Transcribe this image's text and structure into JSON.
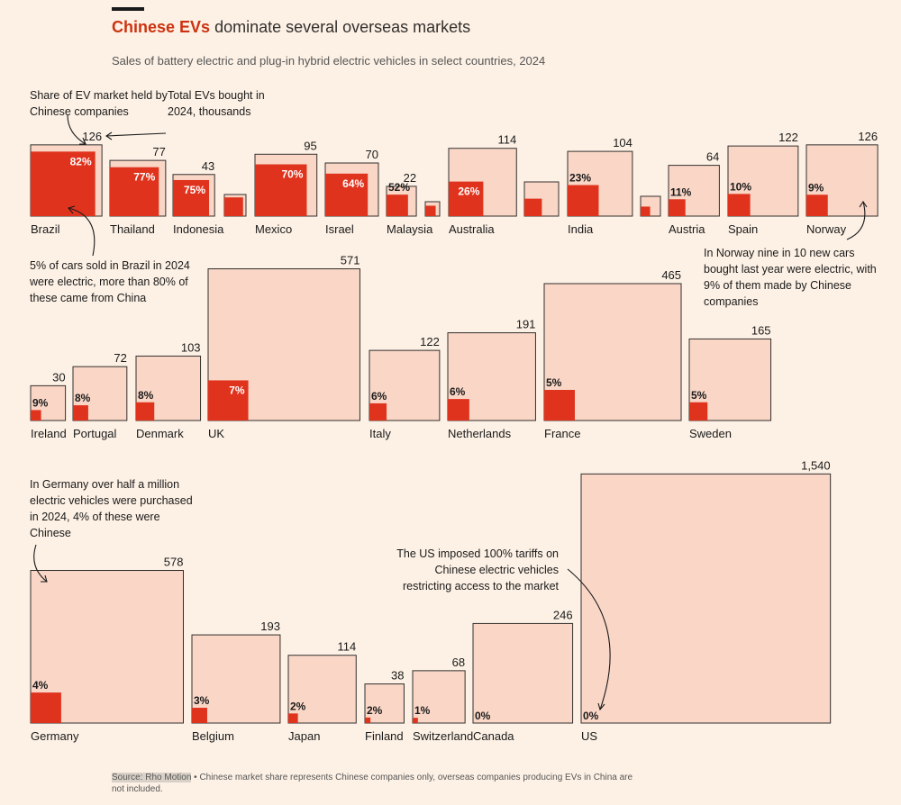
{
  "header": {
    "title_highlight": "Chinese EVs",
    "title_rest": "dominate several overseas markets",
    "subtitle": "Sales of battery electric and plug-in hybrid electric vehicles in select countries, 2024"
  },
  "colors": {
    "background": "#fdf1e5",
    "total_fill": "#f9d6c6",
    "ev_fill": "#e0331d",
    "stroke": "#33302e"
  },
  "annotations": {
    "share_legend": "Share of EV market held by Chinese companies",
    "total_legend": "Total EVs bought in 2024, thousands",
    "brazil_note": "5% of cars sold in Brazil in 2024 were electric, more than 80% of these came from China",
    "norway_note": "In Norway nine in 10 new cars bought last year were electric, with 9% of them made by Chinese companies",
    "germany_note": "In Germany over half a million electric vehicles were purchased in 2024, 4% of these were Chinese",
    "us_note": "The US imposed 100% tariffs on Chinese electric vehicles restricting access to the market"
  },
  "chart_data": {
    "type": "nested-square",
    "title": "Chinese EVs dominate several overseas markets",
    "value_unit": "thousands",
    "countries": [
      {
        "name": "Brazil",
        "total": 126,
        "total_label": "126",
        "chinese_share": 82,
        "share_label": "82%"
      },
      {
        "name": "Thailand",
        "total": 77,
        "total_label": "77",
        "chinese_share": 77,
        "share_label": "77%"
      },
      {
        "name": "Indonesia",
        "total": 43,
        "total_label": "43",
        "chinese_share": 75,
        "share_label": "75%"
      },
      {
        "name": "Mexico",
        "total": 95,
        "total_label": "95",
        "chinese_share": 70,
        "share_label": "70%"
      },
      {
        "name": "Israel",
        "total": 70,
        "total_label": "70",
        "chinese_share": 64,
        "share_label": "64%"
      },
      {
        "name": "Malaysia",
        "total": 22,
        "total_label": "22",
        "chinese_share": 52,
        "share_label": "52%"
      },
      {
        "name": "Australia",
        "total": 114,
        "total_label": "114",
        "chinese_share": 26,
        "share_label": "26%"
      },
      {
        "name": "India",
        "total": 104,
        "total_label": "104",
        "chinese_share": 23,
        "share_label": "23%"
      },
      {
        "name": "Austria",
        "total": 64,
        "total_label": "64",
        "chinese_share": 11,
        "share_label": "11%"
      },
      {
        "name": "Spain",
        "total": 122,
        "total_label": "122",
        "chinese_share": 10,
        "share_label": "10%"
      },
      {
        "name": "Norway",
        "total": 126,
        "total_label": "126",
        "chinese_share": 9,
        "share_label": "9%"
      },
      {
        "name": "Ireland",
        "total": 30,
        "total_label": "30",
        "chinese_share": 9,
        "share_label": "9%"
      },
      {
        "name": "Portugal",
        "total": 72,
        "total_label": "72",
        "chinese_share": 8,
        "share_label": "8%"
      },
      {
        "name": "Denmark",
        "total": 103,
        "total_label": "103",
        "chinese_share": 8,
        "share_label": "8%"
      },
      {
        "name": "UK",
        "total": 571,
        "total_label": "571",
        "chinese_share": 7,
        "share_label": "7%"
      },
      {
        "name": "Italy",
        "total": 122,
        "total_label": "122",
        "chinese_share": 6,
        "share_label": "6%"
      },
      {
        "name": "Netherlands",
        "total": 191,
        "total_label": "191",
        "chinese_share": 6,
        "share_label": "6%"
      },
      {
        "name": "France",
        "total": 465,
        "total_label": "465",
        "chinese_share": 5,
        "share_label": "5%"
      },
      {
        "name": "Sweden",
        "total": 165,
        "total_label": "165",
        "chinese_share": 5,
        "share_label": "5%"
      },
      {
        "name": "Germany",
        "total": 578,
        "total_label": "578",
        "chinese_share": 4,
        "share_label": "4%"
      },
      {
        "name": "Belgium",
        "total": 193,
        "total_label": "193",
        "chinese_share": 3,
        "share_label": "3%"
      },
      {
        "name": "Japan",
        "total": 114,
        "total_label": "114",
        "chinese_share": 2,
        "share_label": "2%"
      },
      {
        "name": "Finland",
        "total": 38,
        "total_label": "38",
        "chinese_share": 2,
        "share_label": "2%"
      },
      {
        "name": "Switzerland",
        "total": 68,
        "total_label": "68",
        "chinese_share": 1,
        "share_label": "1%"
      },
      {
        "name": "Canada",
        "total": 246,
        "total_label": "246",
        "chinese_share": 0,
        "share_label": "0%"
      },
      {
        "name": "US",
        "total": 1540,
        "total_label": "1,540",
        "chinese_share": 0,
        "share_label": "0%"
      }
    ]
  },
  "footer": {
    "source": "Source: Rho Motion",
    "note": "• Chinese market share represents Chinese companies only, overseas companies producing EVs in China are not included."
  }
}
